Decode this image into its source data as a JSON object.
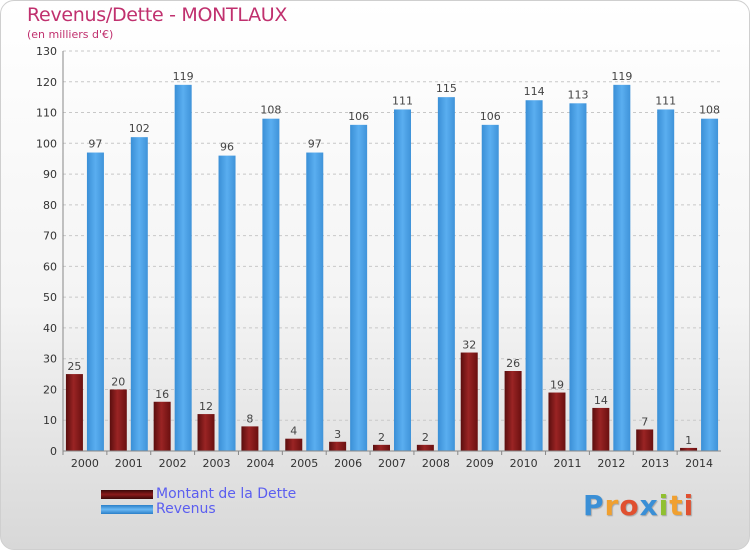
{
  "chart_data": {
    "type": "bar",
    "title": "Revenus/Dette - MONTLAUX",
    "subtitle": "(en milliers d'€)",
    "categories": [
      "2000",
      "2001",
      "2002",
      "2003",
      "2004",
      "2005",
      "2006",
      "2007",
      "2008",
      "2009",
      "2010",
      "2011",
      "2012",
      "2013",
      "2014"
    ],
    "series": [
      {
        "name": "Montant de la Dette",
        "color": "#8b1a1a",
        "values": [
          25,
          20,
          16,
          12,
          8,
          4,
          3,
          2,
          2,
          32,
          26,
          19,
          14,
          7,
          1
        ]
      },
      {
        "name": "Revenus",
        "color": "#4a9fe3",
        "values": [
          97,
          102,
          119,
          96,
          108,
          97,
          106,
          111,
          115,
          106,
          114,
          113,
          119,
          111,
          108
        ]
      }
    ],
    "yticks": [
      0,
      10,
      20,
      30,
      40,
      50,
      60,
      70,
      80,
      90,
      100,
      110,
      120,
      130
    ],
    "ylim": [
      0,
      130
    ],
    "grid": true,
    "legend_position": "bottom-left"
  },
  "legend": {
    "debt_label": "Montant de la Dette",
    "revenue_label": "Revenus"
  },
  "logo": {
    "letters": [
      "P",
      "r",
      "o",
      "x",
      "i",
      "t",
      "i"
    ],
    "colors": [
      "#3a8fd6",
      "#f0a030",
      "#e05030",
      "#3a8fd6",
      "#90c030",
      "#f0a030",
      "#e05030"
    ]
  }
}
